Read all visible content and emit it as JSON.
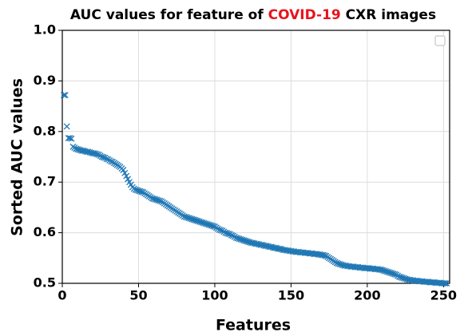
{
  "chart_data": {
    "type": "scatter",
    "title": [
      {
        "text": "AUC values for feature of ",
        "color": "#000000"
      },
      {
        "text": "COVID-19",
        "color": "#e8141c"
      },
      {
        "text": " CXR images",
        "color": "#000000"
      }
    ],
    "xlabel": "Features",
    "ylabel": "Sorted AUC values",
    "marker": "x",
    "color": "#1f77b4",
    "grid": true,
    "xlim": [
      0,
      254
    ],
    "xticks": [
      0,
      50,
      100,
      150,
      200,
      250
    ],
    "ylim": [
      0.5,
      1
    ],
    "yticks": [
      0.5,
      0.6,
      0.7,
      0.8,
      0.9,
      {
        "value": 1,
        "label": "1.0"
      }
    ],
    "x": [
      1,
      2,
      3,
      4,
      5,
      6,
      7,
      8,
      9,
      10,
      11,
      12,
      13,
      14,
      15,
      16,
      17,
      18,
      19,
      20,
      21,
      22,
      23,
      24,
      25,
      26,
      27,
      28,
      29,
      30,
      31,
      32,
      33,
      34,
      35,
      36,
      37,
      38,
      39,
      40,
      41,
      42,
      43,
      44,
      45,
      46,
      47,
      48,
      49,
      50,
      51,
      52,
      53,
      54,
      55,
      56,
      57,
      58,
      59,
      60,
      61,
      62,
      63,
      64,
      65,
      66,
      67,
      68,
      69,
      70,
      71,
      72,
      73,
      74,
      75,
      76,
      77,
      78,
      79,
      80,
      81,
      82,
      83,
      84,
      85,
      86,
      87,
      88,
      89,
      90,
      91,
      92,
      93,
      94,
      95,
      96,
      97,
      98,
      99,
      100,
      101,
      102,
      103,
      104,
      105,
      106,
      107,
      108,
      109,
      110,
      111,
      112,
      113,
      114,
      115,
      116,
      117,
      118,
      119,
      120,
      121,
      122,
      123,
      124,
      125,
      126,
      127,
      128,
      129,
      130,
      131,
      132,
      133,
      134,
      135,
      136,
      137,
      138,
      139,
      140,
      141,
      142,
      143,
      144,
      145,
      146,
      147,
      148,
      149,
      150,
      151,
      152,
      153,
      154,
      155,
      156,
      157,
      158,
      159,
      160,
      161,
      162,
      163,
      164,
      165,
      166,
      167,
      168,
      169,
      170,
      171,
      172,
      173,
      174,
      175,
      176,
      177,
      178,
      179,
      180,
      181,
      182,
      183,
      184,
      185,
      186,
      187,
      188,
      189,
      190,
      191,
      192,
      193,
      194,
      195,
      196,
      197,
      198,
      199,
      200,
      201,
      202,
      203,
      204,
      205,
      206,
      207,
      208,
      209,
      210,
      211,
      212,
      213,
      214,
      215,
      216,
      217,
      218,
      219,
      220,
      221,
      222,
      223,
      224,
      225,
      226,
      227,
      228,
      229,
      230,
      231,
      232,
      233,
      234,
      235,
      236,
      237,
      238,
      239,
      240,
      241,
      242,
      243,
      244,
      245,
      246,
      247,
      248,
      249,
      250,
      251,
      252
    ],
    "values": [
      0.872,
      0.872,
      0.81,
      0.787,
      0.787,
      0.786,
      0.77,
      0.768,
      0.766,
      0.765,
      0.764,
      0.763,
      0.762,
      0.762,
      0.761,
      0.76,
      0.76,
      0.759,
      0.758,
      0.757,
      0.757,
      0.756,
      0.755,
      0.754,
      0.752,
      0.75,
      0.749,
      0.748,
      0.746,
      0.745,
      0.743,
      0.741,
      0.74,
      0.738,
      0.736,
      0.734,
      0.732,
      0.73,
      0.727,
      0.724,
      0.718,
      0.712,
      0.706,
      0.7,
      0.695,
      0.69,
      0.687,
      0.685,
      0.684,
      0.683,
      0.682,
      0.681,
      0.68,
      0.678,
      0.676,
      0.674,
      0.672,
      0.67,
      0.668,
      0.667,
      0.666,
      0.665,
      0.664,
      0.663,
      0.662,
      0.66,
      0.658,
      0.656,
      0.654,
      0.652,
      0.65,
      0.648,
      0.646,
      0.644,
      0.642,
      0.64,
      0.638,
      0.636,
      0.634,
      0.632,
      0.631,
      0.63,
      0.629,
      0.628,
      0.627,
      0.626,
      0.625,
      0.624,
      0.623,
      0.622,
      0.621,
      0.62,
      0.619,
      0.618,
      0.617,
      0.616,
      0.615,
      0.614,
      0.613,
      0.612,
      0.61,
      0.608,
      0.606,
      0.605,
      0.604,
      0.602,
      0.6,
      0.599,
      0.598,
      0.597,
      0.595,
      0.594,
      0.592,
      0.59,
      0.589,
      0.588,
      0.587,
      0.586,
      0.585,
      0.584,
      0.583,
      0.582,
      0.581,
      0.58,
      0.58,
      0.579,
      0.578,
      0.578,
      0.577,
      0.576,
      0.576,
      0.575,
      0.574,
      0.574,
      0.573,
      0.572,
      0.572,
      0.571,
      0.57,
      0.57,
      0.569,
      0.568,
      0.568,
      0.567,
      0.566,
      0.566,
      0.565,
      0.565,
      0.564,
      0.564,
      0.563,
      0.563,
      0.562,
      0.562,
      0.562,
      0.561,
      0.561,
      0.561,
      0.56,
      0.56,
      0.56,
      0.559,
      0.559,
      0.559,
      0.558,
      0.558,
      0.558,
      0.557,
      0.557,
      0.556,
      0.556,
      0.555,
      0.554,
      0.552,
      0.55,
      0.548,
      0.546,
      0.544,
      0.542,
      0.54,
      0.539,
      0.538,
      0.537,
      0.536,
      0.535,
      0.535,
      0.534,
      0.534,
      0.533,
      0.533,
      0.533,
      0.532,
      0.532,
      0.532,
      0.531,
      0.531,
      0.531,
      0.53,
      0.53,
      0.53,
      0.53,
      0.529,
      0.529,
      0.529,
      0.528,
      0.528,
      0.528,
      0.527,
      0.527,
      0.526,
      0.525,
      0.524,
      0.523,
      0.522,
      0.521,
      0.52,
      0.519,
      0.518,
      0.517,
      0.515,
      0.513,
      0.512,
      0.511,
      0.51,
      0.509,
      0.508,
      0.507,
      0.507,
      0.506,
      0.506,
      0.505,
      0.505,
      0.505,
      0.504,
      0.504,
      0.504,
      0.503,
      0.503,
      0.503,
      0.503,
      0.502,
      0.502,
      0.502,
      0.502,
      0.501,
      0.501,
      0.501,
      0.501,
      0.5,
      0.5,
      0.5,
      0.5
    ]
  }
}
